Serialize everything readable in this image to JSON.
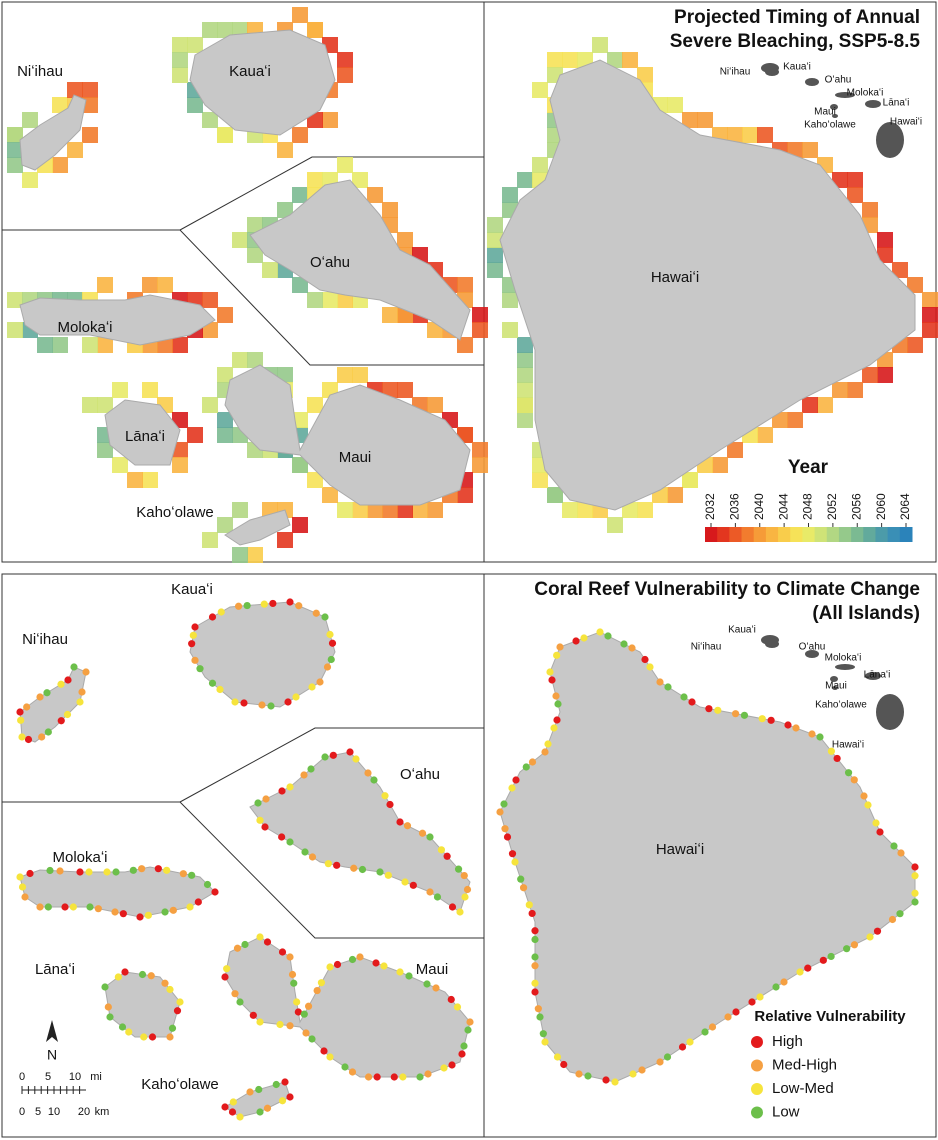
{
  "panels": [
    {
      "title": [
        "Projected Timing of Annual",
        "Severe Bleaching, SSP5-8.5"
      ],
      "islands": [
        "Niʻihau",
        "Kauaʻi",
        "Oʻahu",
        "Molokaʻi",
        "Lānaʻi",
        "Maui",
        "Kahoʻolawe",
        "Hawaiʻi"
      ],
      "legend": {
        "title": "Year",
        "ticks": [
          2032,
          2036,
          2040,
          2044,
          2048,
          2052,
          2056,
          2060,
          2064
        ],
        "colors": [
          "#d7191c",
          "#e3361f",
          "#ec5a26",
          "#f27c2e",
          "#f69b38",
          "#f9b542",
          "#f9cd4b",
          "#f6e258",
          "#e8ea68",
          "#cfe377",
          "#b2d783",
          "#95c98b",
          "#7bba92",
          "#62aa9c",
          "#4c9ba9",
          "#3a8fb6",
          "#2b83ba"
        ]
      }
    },
    {
      "title": [
        "Coral Reef Vulnerability to Climate Change",
        "(All Islands)"
      ],
      "islands": [
        "Niʻihau",
        "Kauaʻi",
        "Oʻahu",
        "Molokaʻi",
        "Lānaʻi",
        "Maui",
        "Kahoʻolawe",
        "Hawaiʻi"
      ],
      "legend": {
        "title": "Relative Vulnerability",
        "items": [
          {
            "name": "High",
            "color": "#e31a1c"
          },
          {
            "name": "Med-High",
            "color": "#f5a042"
          },
          {
            "name": "Low-Med",
            "color": "#f6e43c"
          },
          {
            "name": "Low",
            "color": "#6cbf4a"
          }
        ]
      }
    }
  ],
  "scale_bar": {
    "north": "N",
    "miles": [
      "0",
      "5",
      "10",
      "mi"
    ],
    "km": [
      "0",
      "5",
      "10",
      "20",
      "km"
    ]
  }
}
